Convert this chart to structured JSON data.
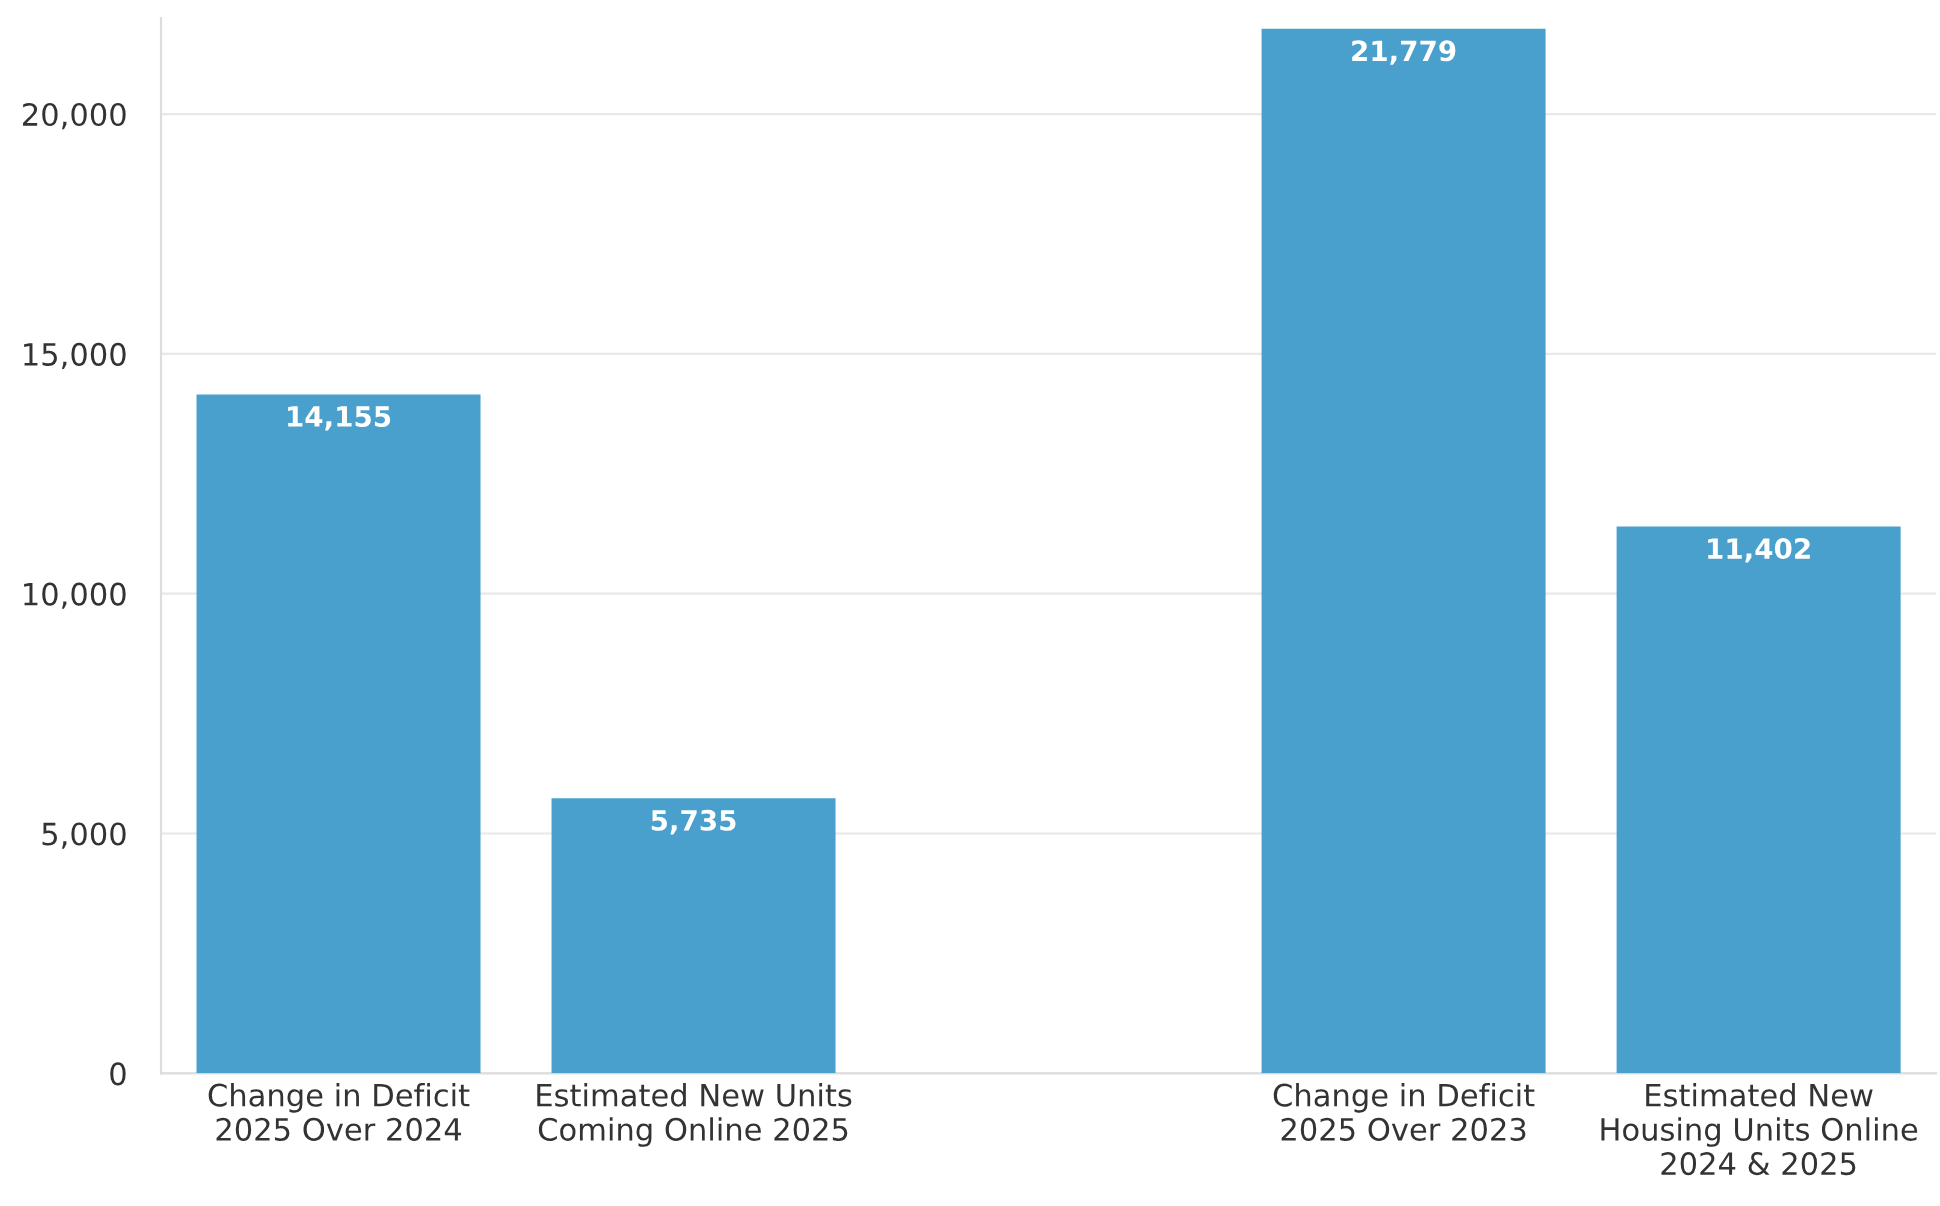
{
  "chart_data": {
    "type": "bar",
    "categories": [
      "Change in Deficit\n2025 Over 2024",
      "Estimated New Units\nComing Online 2025",
      null,
      "Change in Deficit\n2025 Over 2023",
      "Estimated New\nHousing Units Online\n2024 & 2025"
    ],
    "values": [
      14155,
      5735,
      null,
      21779,
      11402
    ],
    "color": "#4aa0cc",
    "ylim": [
      0,
      22000
    ],
    "yticks": [
      0,
      {
        "value": 5000,
        "label": "5,000"
      },
      {
        "value": 10000,
        "label": "10,000"
      },
      {
        "value": 15000,
        "label": "15,000"
      },
      {
        "value": 20000,
        "label": "20,000"
      }
    ],
    "grid": "y",
    "value_labels": [
      "14,155",
      "5,735",
      null,
      "21,779",
      "11,402"
    ]
  }
}
